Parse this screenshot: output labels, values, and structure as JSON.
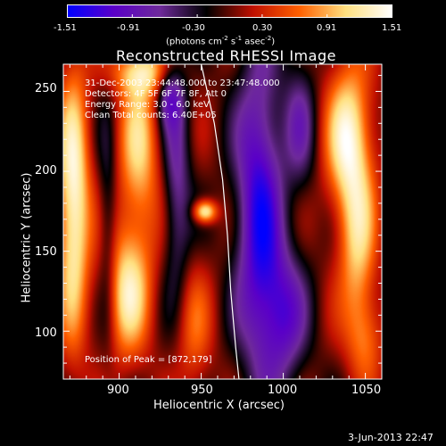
{
  "colorbar": {
    "ticks": [
      "-1.51",
      "-0.91",
      "-0.30",
      "0.30",
      "0.91",
      "1.51"
    ],
    "units_line1": "(photons cm",
    "units_sup1": "-2",
    "units_line2": " s",
    "units_sup2": "-1",
    "units_line3": " asec",
    "units_sup3": "-2",
    "units_close": ")",
    "range": [
      -1.51,
      1.51
    ],
    "colors": [
      "#0000ff",
      "#5a00c8",
      "#6e2a9a",
      "#000000",
      "#c01000",
      "#ff6000",
      "#ffe080",
      "#ffffff"
    ]
  },
  "title": "Reconstructed RHESSI Image",
  "annotations": {
    "time": "31-Dec-2003 23:44:48.000 to 23:47:48.000",
    "detectors": "Detectors: 4F 5F 6F 7F 8F, Att 0",
    "energy": "Energy Range: 3.0 - 6.0 keV",
    "clean": "Clean    Total counts: 6.40E+05",
    "peak": "Position of Peak = [872,179]"
  },
  "axes": {
    "xlabel": "Heliocentric X (arcsec)",
    "ylabel": "Heliocentric Y (arcsec)",
    "xticks": [
      "900",
      "950",
      "1000",
      "1050"
    ],
    "yticks": [
      "100",
      "150",
      "200",
      "250"
    ]
  },
  "footer": "3-Jun-2013 22:47",
  "chart_data": {
    "type": "heatmap",
    "title": "Reconstructed RHESSI Image",
    "xlabel": "Heliocentric X (arcsec)",
    "ylabel": "Heliocentric Y (arcsec)",
    "xlim": [
      866,
      1060
    ],
    "ylim": [
      70,
      267
    ],
    "zlim": [
      -1.51,
      1.51
    ],
    "peak": [
      872,
      179
    ],
    "blobs": [
      {
        "x": 872,
        "y": 180,
        "sx": 7,
        "sy": 60,
        "v": 1.45
      },
      {
        "x": 912,
        "y": 215,
        "sx": 9,
        "sy": 40,
        "v": 1.0
      },
      {
        "x": 905,
        "y": 125,
        "sx": 10,
        "sy": 30,
        "v": 1.15
      },
      {
        "x": 915,
        "y": 262,
        "sx": 14,
        "sy": 10,
        "v": 0.9
      },
      {
        "x": 952,
        "y": 175,
        "sx": 5,
        "sy": 5,
        "v": 1.4
      },
      {
        "x": 945,
        "y": 100,
        "sx": 8,
        "sy": 30,
        "v": 0.55
      },
      {
        "x": 1040,
        "y": 220,
        "sx": 10,
        "sy": 35,
        "v": 1.35
      },
      {
        "x": 1045,
        "y": 150,
        "sx": 8,
        "sy": 35,
        "v": 0.9
      },
      {
        "x": 1050,
        "y": 95,
        "sx": 8,
        "sy": 20,
        "v": 0.6
      },
      {
        "x": 985,
        "y": 175,
        "sx": 10,
        "sy": 70,
        "v": -1.3
      },
      {
        "x": 1010,
        "y": 230,
        "sx": 7,
        "sy": 30,
        "v": -0.6
      },
      {
        "x": 935,
        "y": 190,
        "sx": 6,
        "sy": 50,
        "v": -0.7
      },
      {
        "x": 1000,
        "y": 110,
        "sx": 10,
        "sy": 30,
        "v": -0.9
      },
      {
        "x": 893,
        "y": 160,
        "sx": 4,
        "sy": 50,
        "v": -0.5
      },
      {
        "x": 930,
        "y": 250,
        "sx": 6,
        "sy": 15,
        "v": -0.8
      }
    ],
    "limb": [
      [
        950,
        267
      ],
      [
        958,
        230
      ],
      [
        963,
        195
      ],
      [
        966,
        160
      ],
      [
        968,
        125
      ],
      [
        971,
        90
      ],
      [
        973,
        70
      ]
    ]
  }
}
